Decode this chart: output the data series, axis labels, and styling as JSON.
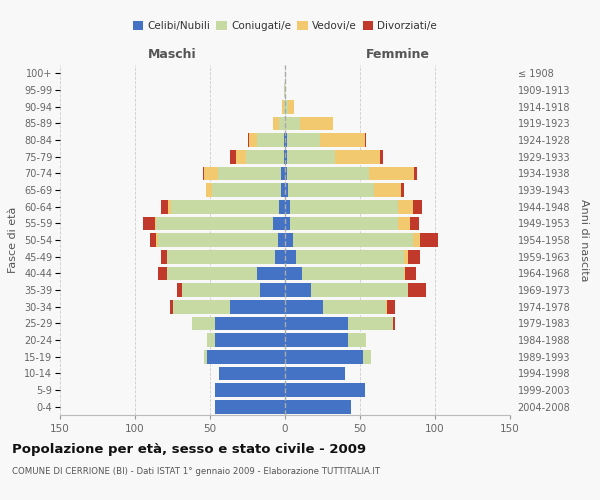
{
  "age_groups_bottom_to_top": [
    "0-4",
    "5-9",
    "10-14",
    "15-19",
    "20-24",
    "25-29",
    "30-34",
    "35-39",
    "40-44",
    "45-49",
    "50-54",
    "55-59",
    "60-64",
    "65-69",
    "70-74",
    "75-79",
    "80-84",
    "85-89",
    "90-94",
    "95-99",
    "100+"
  ],
  "birth_years_bottom_to_top": [
    "2004-2008",
    "1999-2003",
    "1994-1998",
    "1989-1993",
    "1984-1988",
    "1979-1983",
    "1974-1978",
    "1969-1973",
    "1964-1968",
    "1959-1963",
    "1954-1958",
    "1949-1953",
    "1944-1948",
    "1939-1943",
    "1934-1938",
    "1929-1933",
    "1924-1928",
    "1919-1923",
    "1914-1918",
    "1909-1913",
    "≤ 1908"
  ],
  "males": {
    "celibe": [
      47,
      47,
      44,
      52,
      47,
      47,
      37,
      17,
      19,
      7,
      5,
      8,
      4,
      3,
      3,
      1,
      1,
      0,
      0,
      0,
      0
    ],
    "coniugato": [
      0,
      0,
      0,
      2,
      5,
      15,
      38,
      52,
      60,
      72,
      80,
      78,
      72,
      46,
      42,
      25,
      18,
      4,
      1,
      1,
      0
    ],
    "vedovo": [
      0,
      0,
      0,
      0,
      0,
      0,
      0,
      0,
      0,
      0,
      1,
      1,
      2,
      4,
      9,
      7,
      5,
      4,
      1,
      0,
      0
    ],
    "divorziato": [
      0,
      0,
      0,
      0,
      0,
      0,
      2,
      3,
      6,
      4,
      4,
      8,
      5,
      0,
      1,
      4,
      1,
      0,
      0,
      0,
      0
    ]
  },
  "females": {
    "nubile": [
      44,
      53,
      40,
      52,
      42,
      42,
      25,
      17,
      11,
      7,
      5,
      3,
      3,
      2,
      1,
      1,
      1,
      0,
      0,
      0,
      0
    ],
    "coniugata": [
      0,
      0,
      0,
      5,
      12,
      30,
      42,
      65,
      68,
      72,
      80,
      72,
      72,
      57,
      55,
      32,
      22,
      10,
      2,
      0,
      0
    ],
    "vedova": [
      0,
      0,
      0,
      0,
      0,
      0,
      1,
      0,
      1,
      3,
      5,
      8,
      10,
      18,
      30,
      30,
      30,
      22,
      4,
      0,
      0
    ],
    "divorziata": [
      0,
      0,
      0,
      0,
      0,
      1,
      5,
      12,
      7,
      8,
      12,
      6,
      6,
      2,
      2,
      2,
      1,
      0,
      0,
      0,
      0
    ]
  },
  "colors": {
    "celibe_nubile": "#4472C4",
    "coniugato_coniugata": "#c8daa4",
    "vedovo_vedova": "#f2c96e",
    "divorziato_divorziata": "#c0392b"
  },
  "title": "Popolazione per età, sesso e stato civile - 2009",
  "subtitle": "COMUNE DI CERRIONE (BI) - Dati ISTAT 1° gennaio 2009 - Elaborazione TUTTITALIA.IT",
  "xlabel_left": "Maschi",
  "xlabel_right": "Femmine",
  "ylabel_left": "Fasce di età",
  "ylabel_right": "Anni di nascita",
  "xlim": 150,
  "background_color": "#f8f8f8",
  "grid_color": "#cccccc"
}
